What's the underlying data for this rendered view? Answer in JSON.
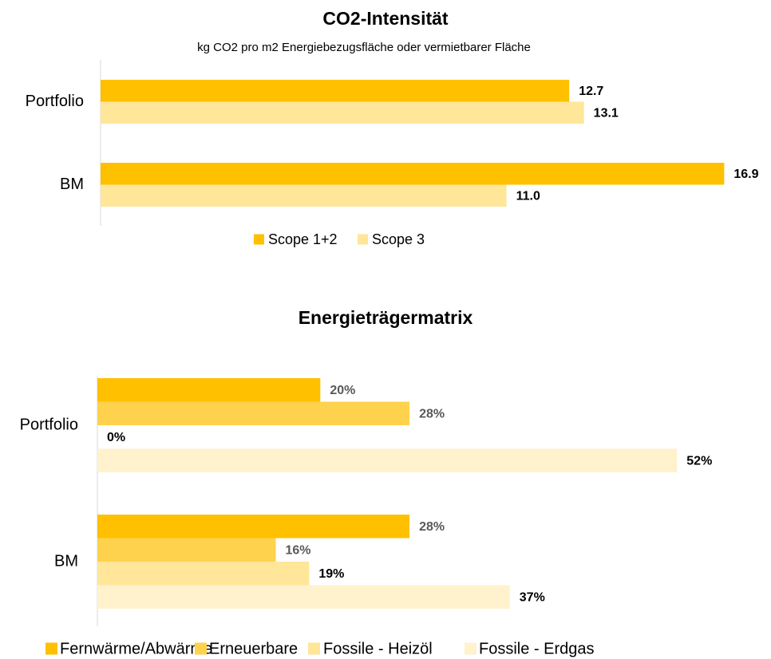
{
  "chart_data": [
    {
      "type": "bar",
      "orientation": "horizontal",
      "title": "CO2-Intensität",
      "subtitle": "kg CO2 pro m2 Energiebezugsfläche oder vermietbarer Fläche",
      "categories": [
        "Portfolio",
        "BM"
      ],
      "xlim": [
        0,
        17
      ],
      "series": [
        {
          "name": "Scope 1+2",
          "color": "#FFC000",
          "label_color": "#000000",
          "values": [
            12.7,
            16.9
          ],
          "value_labels": [
            "12.7",
            "16.9"
          ]
        },
        {
          "name": "Scope 3",
          "color": "#FFE699",
          "label_color": "#000000",
          "values": [
            13.1,
            11.0
          ],
          "value_labels": [
            "13.1",
            "11.0"
          ]
        }
      ]
    },
    {
      "type": "bar",
      "orientation": "horizontal",
      "title": "Energieträgermatrix",
      "categories": [
        "Portfolio",
        "BM"
      ],
      "xlim": [
        0,
        60
      ],
      "series": [
        {
          "name": "Fernwärme/Abwärme",
          "color": "#FFC000",
          "label_color": "#595959",
          "values": [
            20,
            28
          ],
          "value_labels": [
            "20%",
            "28%"
          ]
        },
        {
          "name": "Erneuerbare",
          "color": "#FFD24D",
          "label_color": "#595959",
          "values": [
            28,
            16
          ],
          "value_labels": [
            "28%",
            "16%"
          ]
        },
        {
          "name": "Fossile - Heizöl",
          "color": "#FFE699",
          "label_color": "#000000",
          "values": [
            0,
            19
          ],
          "value_labels": [
            "0%",
            "19%"
          ]
        },
        {
          "name": "Fossile - Erdgas",
          "color": "#FFF2CC",
          "label_color": "#000000",
          "values": [
            52,
            37
          ],
          "value_labels": [
            "52%",
            "37%"
          ]
        }
      ]
    }
  ]
}
